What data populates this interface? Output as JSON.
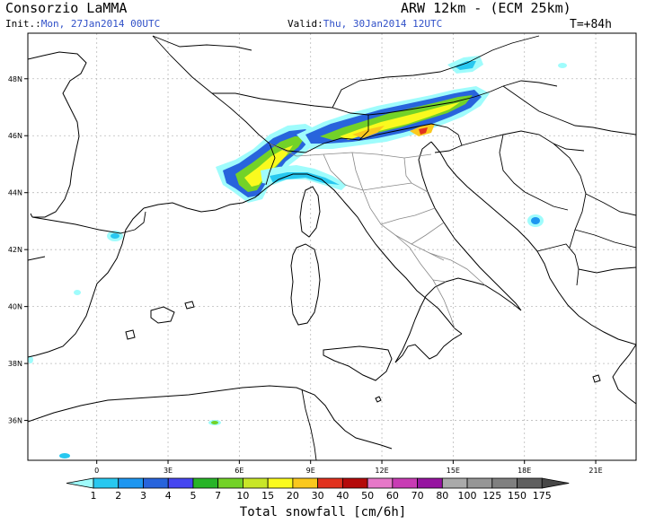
{
  "header": {
    "org": "Consorzio LaMMA",
    "model": "ARW 12km - (ECM 25km)",
    "init_label": "Init.:",
    "init_value": "Mon, 27Jan2014 00UTC",
    "valid_label": "Valid:",
    "valid_value": "Thu, 30Jan2014 12UTC",
    "step": "T=+84h"
  },
  "map": {
    "lat_labels": [
      "48N",
      "46N",
      "44N",
      "42N",
      "40N",
      "38N",
      "36N"
    ],
    "lat_values": [
      48,
      46,
      44,
      42,
      40,
      38,
      36
    ],
    "lon_labels": [
      "0",
      "3E",
      "6E",
      "9E",
      "12E",
      "15E",
      "18E",
      "21E"
    ],
    "lon_values": [
      0,
      3,
      6,
      9,
      12,
      15,
      18,
      21
    ],
    "extent": {
      "lon_min": -2.9,
      "lon_max": 22.7,
      "lat_min": 34.6,
      "lat_max": 49.6
    }
  },
  "legend": {
    "title": "Total snowfall [cm/6h]",
    "levels": [
      "1",
      "2",
      "3",
      "4",
      "5",
      "7",
      "10",
      "15",
      "20",
      "30",
      "40",
      "50",
      "60",
      "70",
      "80",
      "100",
      "125",
      "150",
      "175"
    ],
    "colors": [
      "#9ffcfc",
      "#28c8f0",
      "#1e96f0",
      "#2864dc",
      "#4646f0",
      "#28b428",
      "#73d228",
      "#c8e628",
      "#fafa1e",
      "#fac81e",
      "#e1321e",
      "#b40a0a",
      "#e678c8",
      "#c83cb4",
      "#9614a0",
      "#aaaaaa",
      "#969696",
      "#808080",
      "#606060",
      "#464646"
    ]
  }
}
